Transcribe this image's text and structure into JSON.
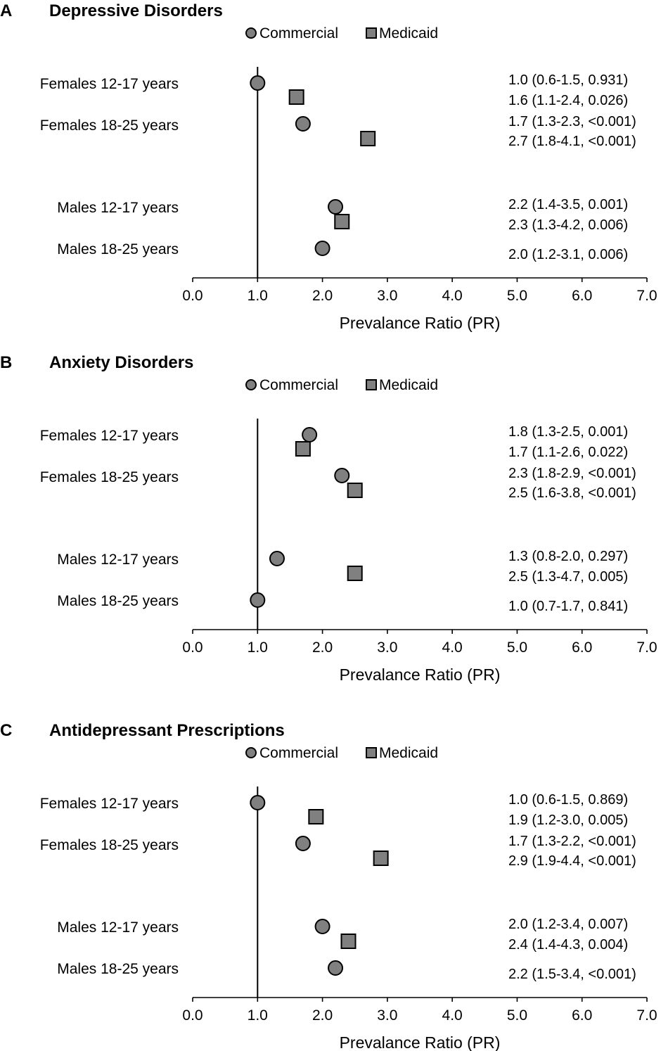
{
  "legend": {
    "commercial": "Commercial",
    "medicaid": "Medicaid"
  },
  "colors": {
    "marker_fill": "#808080",
    "marker_stroke": "#000000"
  },
  "chart_data": [
    {
      "panel": "A",
      "title": "Depressive Disorders",
      "type": "scatter",
      "xlabel": "Prevalance Ratio (PR)",
      "xlim": [
        0,
        7
      ],
      "xticks": [
        "0.0",
        "1.0",
        "2.0",
        "3.0",
        "4.0",
        "5.0",
        "6.0",
        "7.0"
      ],
      "reference_line": 1.0,
      "rows": [
        {
          "label": "Females 12-17 years",
          "points": [
            {
              "series": "Commercial",
              "pr": 1.0,
              "text": "1.0 (0.6-1.5, 0.931)"
            },
            {
              "series": "Medicaid",
              "pr": 1.6,
              "text": "1.6 (1.1-2.4, 0.026)"
            }
          ]
        },
        {
          "label": "Females 18-25 years",
          "points": [
            {
              "series": "Commercial",
              "pr": 1.7,
              "text": "1.7 (1.3-2.3, <0.001)"
            },
            {
              "series": "Medicaid",
              "pr": 2.7,
              "text": "2.7 (1.8-4.1, <0.001)"
            }
          ]
        },
        {
          "label": "Males 12-17 years",
          "points": [
            {
              "series": "Commercial",
              "pr": 2.2,
              "text": "2.2 (1.4-3.5, 0.001)"
            },
            {
              "series": "Medicaid",
              "pr": 2.3,
              "text": "2.3 (1.3-4.2, 0.006)"
            }
          ]
        },
        {
          "label": "Males 18-25 years",
          "points": [
            {
              "series": "Commercial",
              "pr": 2.0,
              "text": "2.0 (1.2-3.1, 0.006)"
            }
          ]
        }
      ]
    },
    {
      "panel": "B",
      "title": "Anxiety Disorders",
      "type": "scatter",
      "xlabel": "Prevalance Ratio (PR)",
      "xlim": [
        0,
        7
      ],
      "xticks": [
        "0.0",
        "1.0",
        "2.0",
        "3.0",
        "4.0",
        "5.0",
        "6.0",
        "7.0"
      ],
      "reference_line": 1.0,
      "rows": [
        {
          "label": "Females 12-17 years",
          "points": [
            {
              "series": "Commercial",
              "pr": 1.8,
              "text": "1.8 (1.3-2.5, 0.001)"
            },
            {
              "series": "Medicaid",
              "pr": 1.7,
              "text": "1.7 (1.1-2.6, 0.022)"
            }
          ]
        },
        {
          "label": "Females 18-25 years",
          "points": [
            {
              "series": "Commercial",
              "pr": 2.3,
              "text": "2.3 (1.8-2.9, <0.001)"
            },
            {
              "series": "Medicaid",
              "pr": 2.5,
              "text": "2.5 (1.6-3.8, <0.001)"
            }
          ]
        },
        {
          "label": "Males 12-17 years",
          "points": [
            {
              "series": "Commercial",
              "pr": 1.3,
              "text": "1.3 (0.8-2.0, 0.297)"
            },
            {
              "series": "Medicaid",
              "pr": 2.5,
              "text": "2.5 (1.3-4.7, 0.005)"
            }
          ]
        },
        {
          "label": "Males 18-25 years",
          "points": [
            {
              "series": "Commercial",
              "pr": 1.0,
              "text": "1.0 (0.7-1.7, 0.841)"
            }
          ]
        }
      ]
    },
    {
      "panel": "C",
      "title": "Antidepressant Prescriptions",
      "type": "scatter",
      "xlabel": "Prevalance Ratio (PR)",
      "xlim": [
        0,
        7
      ],
      "xticks": [
        "0.0",
        "1.0",
        "2.0",
        "3.0",
        "4.0",
        "5.0",
        "6.0",
        "7.0"
      ],
      "reference_line": 1.0,
      "rows": [
        {
          "label": "Females 12-17 years",
          "points": [
            {
              "series": "Commercial",
              "pr": 1.0,
              "text": "1.0 (0.6-1.5, 0.869)"
            },
            {
              "series": "Medicaid",
              "pr": 1.9,
              "text": "1.9 (1.2-3.0, 0.005)"
            }
          ]
        },
        {
          "label": "Females 18-25 years",
          "points": [
            {
              "series": "Commercial",
              "pr": 1.7,
              "text": "1.7 (1.3-2.2, <0.001)"
            },
            {
              "series": "Medicaid",
              "pr": 2.9,
              "text": "2.9 (1.9-4.4, <0.001)"
            }
          ]
        },
        {
          "label": "Males 12-17 years",
          "points": [
            {
              "series": "Commercial",
              "pr": 2.0,
              "text": "2.0 (1.2-3.4, 0.007)"
            },
            {
              "series": "Medicaid",
              "pr": 2.4,
              "text": "2.4 (1.4-4.3, 0.004)"
            }
          ]
        },
        {
          "label": "Males 18-25 years",
          "points": [
            {
              "series": "Commercial",
              "pr": 2.2,
              "text": "2.2 (1.5-3.4, <0.001)"
            }
          ]
        }
      ]
    }
  ]
}
